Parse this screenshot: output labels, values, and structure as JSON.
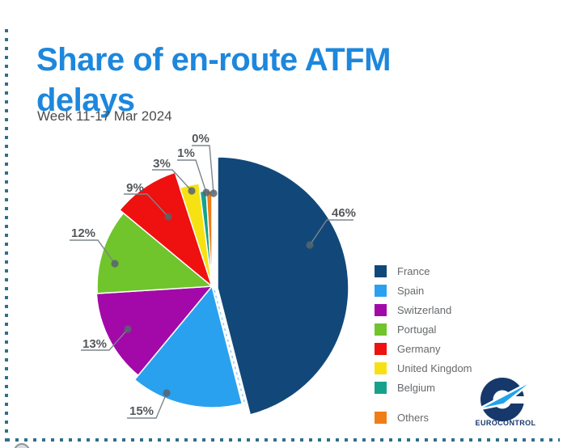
{
  "title": "Share of en-route ATFM delays",
  "subtitle": "Week 11-17 Mar 2024",
  "chart_data": {
    "type": "pie",
    "unit": "percent",
    "start_angle_deg": 0,
    "direction": "clockwise",
    "legend_position": "right",
    "series": [
      {
        "name": "France",
        "value": 46,
        "label": "46%",
        "color": "#124879"
      },
      {
        "name": "Spain",
        "value": 15,
        "label": "15%",
        "color": "#2AA1EF"
      },
      {
        "name": "Switzerland",
        "value": 13,
        "label": "13%",
        "color": "#A309A8"
      },
      {
        "name": "Portugal",
        "value": 12,
        "label": "12%",
        "color": "#70C42C"
      },
      {
        "name": "Germany",
        "value": 9,
        "label": "9%",
        "color": "#EF1010"
      },
      {
        "name": "United Kingdom",
        "value": 3,
        "label": "3%",
        "color": "#F6E213"
      },
      {
        "name": "Belgium",
        "value": 1,
        "label": "1%",
        "color": "#16A18B"
      },
      {
        "name": "Others",
        "value": 0,
        "label": "0%",
        "color": "#F07D17"
      }
    ]
  },
  "logo": {
    "text": "EUROCONTROL"
  },
  "colors": {
    "title": "#1D87DD",
    "dotted_border": "#2E7089",
    "label_text": "#54585B",
    "leader_line": "#7D858A",
    "logo_navy": "#16386B",
    "logo_blue": "#22A3E8"
  }
}
